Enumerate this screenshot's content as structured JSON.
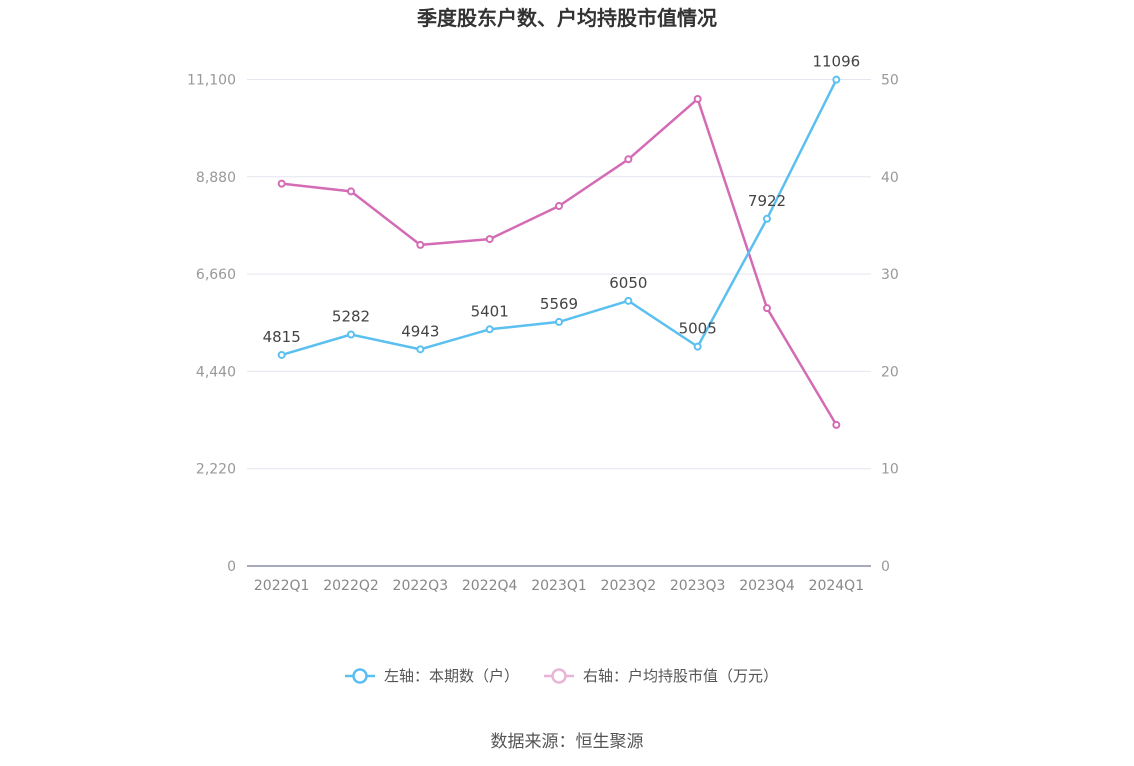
{
  "chart_data": {
    "type": "line",
    "title": "季度股东户数、户均持股市值情况",
    "categories": [
      "2022Q1",
      "2022Q2",
      "2022Q3",
      "2022Q4",
      "2023Q1",
      "2023Q2",
      "2023Q3",
      "2023Q4",
      "2024Q1"
    ],
    "left_axis": {
      "ticks": [
        "0",
        "2,220",
        "4,440",
        "6,660",
        "8,880",
        "11,100"
      ],
      "ylim": [
        0,
        11100
      ]
    },
    "right_axis": {
      "ticks": [
        "0",
        "10",
        "20",
        "30",
        "40",
        "50"
      ],
      "ylim": [
        0,
        50
      ]
    },
    "series": [
      {
        "name": "左轴：本期数（户）",
        "axis": "left",
        "color": "#5bc0f0",
        "values": [
          4815,
          5282,
          4943,
          5401,
          5569,
          6050,
          5005,
          7922,
          11096
        ],
        "labels": [
          "4815",
          "5282",
          "4943",
          "5401",
          "5569",
          "6050",
          "5005",
          "7922",
          "11096"
        ]
      },
      {
        "name": "右轴：户均持股市值（万元）",
        "axis": "right",
        "color": "#d36bb5",
        "values": [
          39.3,
          38.5,
          33.0,
          33.6,
          37.0,
          41.8,
          48.0,
          26.5,
          14.5
        ]
      }
    ],
    "grid": true,
    "legend_position": "bottom"
  },
  "source": "数据来源：恒生聚源"
}
